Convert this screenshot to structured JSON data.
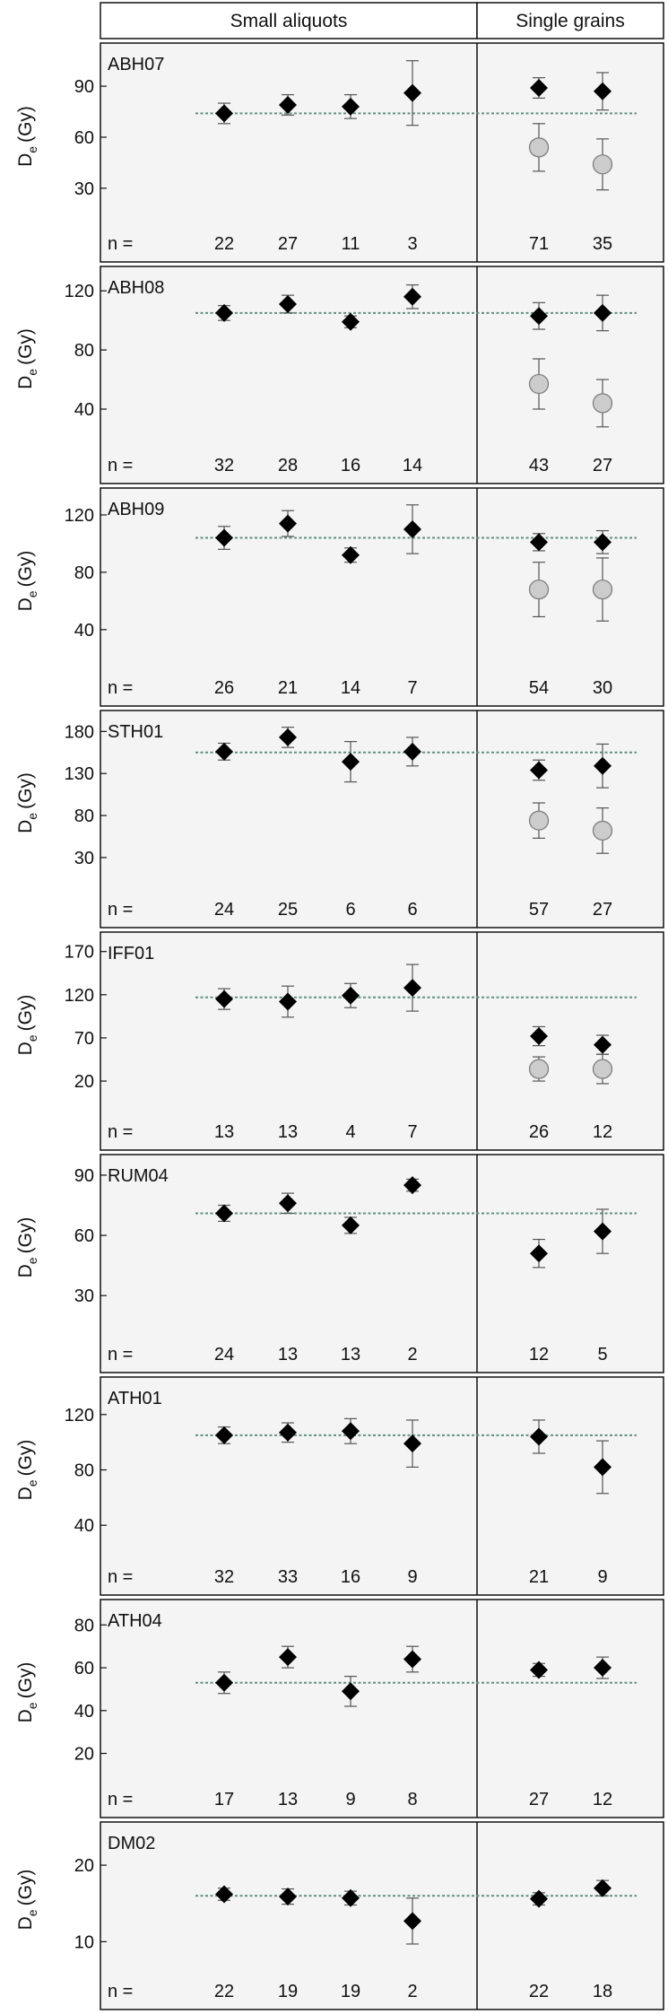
{
  "header": {
    "left_title": "Small aliquots",
    "right_title": "Single grains"
  },
  "columns": [
    "A",
    "B",
    "C",
    "D",
    "E",
    "F"
  ],
  "n_label": "n =",
  "colors": {
    "diamond": "#000000",
    "circle_fill": "#cccccc",
    "circle_stroke": "#7f7f7f",
    "reference_line": "#5f8f82",
    "panel_background": "#f4f4f4",
    "frame": "#111111"
  },
  "chart_data": [
    {
      "type": "scatter",
      "title": "ABH07",
      "ylabel": "D",
      "ylabel_sub": "e",
      "ylabel_unit": "(Gy)",
      "ylim": [
        13,
        108
      ],
      "yticks": [
        30,
        60,
        90
      ],
      "reference": 74,
      "n": [
        "22",
        "27",
        "11",
        "3",
        "71",
        "35"
      ],
      "diamonds": [
        {
          "x": "A",
          "y": 74,
          "err": 6
        },
        {
          "x": "B",
          "y": 79,
          "err": 6
        },
        {
          "x": "C",
          "y": 78,
          "err": 7
        },
        {
          "x": "D",
          "y": 86,
          "err": 19
        },
        {
          "x": "E",
          "y": 89,
          "err": 6
        },
        {
          "x": "F",
          "y": 87,
          "err": 11
        }
      ],
      "circles": [
        {
          "x": "E",
          "y": 54,
          "err": 14
        },
        {
          "x": "F",
          "y": 44,
          "err": 15
        }
      ]
    },
    {
      "type": "scatter",
      "title": "ABH08",
      "ylabel": "D",
      "ylabel_sub": "e",
      "ylabel_unit": "(Gy)",
      "ylim": [
        20,
        128
      ],
      "yticks": [
        40,
        80,
        120
      ],
      "reference": 105,
      "n": [
        "32",
        "28",
        "16",
        "14",
        "43",
        "27"
      ],
      "diamonds": [
        {
          "x": "A",
          "y": 105,
          "err": 5
        },
        {
          "x": "B",
          "y": 111,
          "err": 6
        },
        {
          "x": "C",
          "y": 99,
          "err": 4
        },
        {
          "x": "D",
          "y": 116,
          "err": 8
        },
        {
          "x": "E",
          "y": 103,
          "err": 9
        },
        {
          "x": "F",
          "y": 105,
          "err": 12
        }
      ],
      "circles": [
        {
          "x": "E",
          "y": 57,
          "err": 17
        },
        {
          "x": "F",
          "y": 44,
          "err": 16
        }
      ]
    },
    {
      "type": "scatter",
      "title": "ABH09",
      "ylabel": "D",
      "ylabel_sub": "e",
      "ylabel_unit": "(Gy)",
      "ylim": [
        18,
        130
      ],
      "yticks": [
        40,
        80,
        120
      ],
      "reference": 104,
      "n": [
        "26",
        "21",
        "14",
        "7",
        "54",
        "30"
      ],
      "diamonds": [
        {
          "x": "A",
          "y": 104,
          "err": 8
        },
        {
          "x": "B",
          "y": 114,
          "err": 9
        },
        {
          "x": "C",
          "y": 92,
          "err": 5
        },
        {
          "x": "D",
          "y": 110,
          "err": 17
        },
        {
          "x": "E",
          "y": 101,
          "err": 6
        },
        {
          "x": "F",
          "y": 101,
          "err": 8
        }
      ],
      "circles": [
        {
          "x": "E",
          "y": 68,
          "err": 19
        },
        {
          "x": "F",
          "y": 68,
          "err": 22
        }
      ]
    },
    {
      "type": "scatter",
      "title": "STH01",
      "ylabel": "D",
      "ylabel_sub": "e",
      "ylabel_unit": "(Gy)",
      "ylim": [
        0,
        190
      ],
      "yticks": [
        30,
        80,
        130,
        180
      ],
      "reference": 155,
      "n": [
        "24",
        "25",
        "6",
        "6",
        "57",
        "27"
      ],
      "diamonds": [
        {
          "x": "A",
          "y": 156,
          "err": 10
        },
        {
          "x": "B",
          "y": 173,
          "err": 12
        },
        {
          "x": "C",
          "y": 144,
          "err": 24
        },
        {
          "x": "D",
          "y": 156,
          "err": 17
        },
        {
          "x": "E",
          "y": 134,
          "err": 12
        },
        {
          "x": "F",
          "y": 139,
          "err": 26
        }
      ],
      "circles": [
        {
          "x": "E",
          "y": 74,
          "err": 21
        },
        {
          "x": "F",
          "y": 62,
          "err": 27
        }
      ]
    },
    {
      "type": "scatter",
      "title": "IFF01",
      "ylabel": "D",
      "ylabel_sub": "e",
      "ylabel_unit": "(Gy)",
      "ylim": [
        -8,
        178
      ],
      "yticks": [
        20,
        70,
        120,
        170
      ],
      "reference": 117,
      "n": [
        "13",
        "13",
        "4",
        "7",
        "26",
        "12"
      ],
      "diamonds": [
        {
          "x": "A",
          "y": 115,
          "err": 12
        },
        {
          "x": "B",
          "y": 112,
          "err": 18
        },
        {
          "x": "C",
          "y": 119,
          "err": 14
        },
        {
          "x": "D",
          "y": 128,
          "err": 27
        },
        {
          "x": "E",
          "y": 72,
          "err": 11
        },
        {
          "x": "F",
          "y": 62,
          "err": 11
        }
      ],
      "circles": [
        {
          "x": "E",
          "y": 34,
          "err": 14
        },
        {
          "x": "F",
          "y": 34,
          "err": 17
        }
      ]
    },
    {
      "type": "scatter",
      "title": "RUM04",
      "ylabel": "D",
      "ylabel_sub": "e",
      "ylabel_unit": "(Gy)",
      "ylim": [
        14,
        94
      ],
      "yticks": [
        30,
        60,
        90
      ],
      "reference": 71,
      "n": [
        "24",
        "13",
        "13",
        "2",
        "12",
        "5"
      ],
      "diamonds": [
        {
          "x": "A",
          "y": 71,
          "err": 4
        },
        {
          "x": "B",
          "y": 76,
          "err": 5
        },
        {
          "x": "C",
          "y": 65,
          "err": 4
        },
        {
          "x": "D",
          "y": 85,
          "err": 3
        },
        {
          "x": "E",
          "y": 51,
          "err": 7
        },
        {
          "x": "F",
          "y": 62,
          "err": 11
        }
      ],
      "circles": []
    },
    {
      "type": "scatter",
      "title": "ATH01",
      "ylabel": "D",
      "ylabel_sub": "e",
      "ylabel_unit": "(Gy)",
      "ylim": [
        22,
        138
      ],
      "yticks": [
        40,
        80,
        120
      ],
      "reference": 105,
      "n": [
        "32",
        "33",
        "16",
        "9",
        "21",
        "9"
      ],
      "diamonds": [
        {
          "x": "A",
          "y": 105,
          "err": 6
        },
        {
          "x": "B",
          "y": 107,
          "err": 7
        },
        {
          "x": "C",
          "y": 108,
          "err": 9
        },
        {
          "x": "D",
          "y": 99,
          "err": 17
        },
        {
          "x": "E",
          "y": 104,
          "err": 12
        },
        {
          "x": "F",
          "y": 82,
          "err": 19
        }
      ],
      "circles": []
    },
    {
      "type": "scatter",
      "title": "ATH04",
      "ylabel": "D",
      "ylabel_sub": "e",
      "ylabel_unit": "(Gy)",
      "ylim": [
        11,
        86
      ],
      "yticks": [
        20,
        40,
        60,
        80
      ],
      "reference": 53,
      "n": [
        "17",
        "13",
        "9",
        "8",
        "27",
        "12"
      ],
      "diamonds": [
        {
          "x": "A",
          "y": 53,
          "err": 5
        },
        {
          "x": "B",
          "y": 65,
          "err": 5
        },
        {
          "x": "C",
          "y": 49,
          "err": 7
        },
        {
          "x": "D",
          "y": 64,
          "err": 6
        },
        {
          "x": "E",
          "y": 59,
          "err": 3
        },
        {
          "x": "F",
          "y": 60,
          "err": 5
        }
      ],
      "circles": []
    },
    {
      "type": "scatter",
      "title": "DM02",
      "ylabel": "D",
      "ylabel_sub": "e",
      "ylabel_unit": "(Gy)",
      "ylim": [
        7,
        24
      ],
      "yticks": [
        10,
        20
      ],
      "reference": 16,
      "n": [
        "22",
        "19",
        "19",
        "2",
        "22",
        "18"
      ],
      "diamonds": [
        {
          "x": "A",
          "y": 16.2,
          "err": 0.8
        },
        {
          "x": "B",
          "y": 15.9,
          "err": 1.0
        },
        {
          "x": "C",
          "y": 15.7,
          "err": 0.9
        },
        {
          "x": "D",
          "y": 12.7,
          "err": 3.0
        },
        {
          "x": "E",
          "y": 15.6,
          "err": 0.8
        },
        {
          "x": "F",
          "y": 17.0,
          "err": 1.0
        }
      ],
      "circles": []
    }
  ]
}
